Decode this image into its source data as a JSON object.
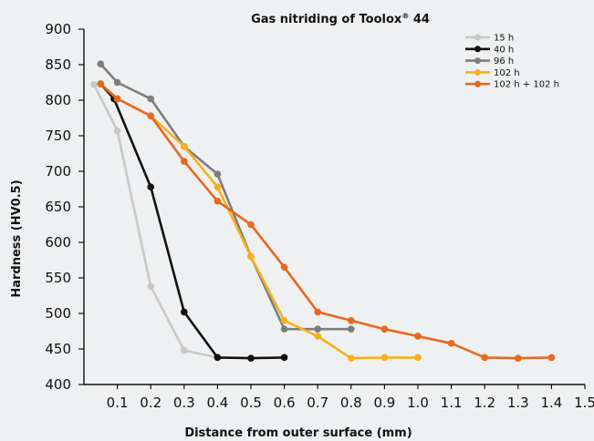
{
  "chart_data": {
    "type": "line",
    "title": "Gas nitriding of Toolox",
    "title_sup": "®",
    "title_suffix": " 44",
    "xlabel": "Distance from outer surface (mm)",
    "ylabel": "Hardness (HV0.5)",
    "xlim": [
      0,
      1.5
    ],
    "ylim": [
      400,
      900
    ],
    "xticks": [
      "0.1",
      "0.2",
      "0.3",
      "0.4",
      "0.5",
      "0.6",
      "0.7",
      "0.8",
      "0.9",
      "1.0",
      "1.1",
      "1.2",
      "1.3",
      "1.4",
      "1.5"
    ],
    "yticks": [
      "400",
      "450",
      "500",
      "550",
      "600",
      "650",
      "700",
      "750",
      "800",
      "850",
      "900"
    ],
    "grid": false,
    "legend_position": "top-right",
    "series": [
      {
        "name": "15 h",
        "color": "#c8c8c8",
        "x": [
          0.03,
          0.1,
          0.2,
          0.3,
          0.4
        ],
        "y": [
          822,
          757,
          538,
          448,
          438
        ]
      },
      {
        "name": "40 h",
        "color": "#111111",
        "x": [
          0.05,
          0.09,
          0.2,
          0.3,
          0.4,
          0.5,
          0.6
        ],
        "y": [
          823,
          802,
          678,
          502,
          438,
          437,
          438
        ]
      },
      {
        "name": "96 h",
        "color": "#7d7d7d",
        "x": [
          0.05,
          0.1,
          0.2,
          0.3,
          0.4,
          0.5,
          0.6,
          0.7,
          0.8
        ],
        "y": [
          851,
          825,
          802,
          735,
          696,
          580,
          478,
          478,
          478
        ]
      },
      {
        "name": "102 h",
        "color": "#f5b21a",
        "x": [
          0.05,
          0.1,
          0.2,
          0.3,
          0.4,
          0.5,
          0.6,
          0.7,
          0.8,
          0.9,
          1.0
        ],
        "y": [
          823,
          802,
          778,
          735,
          678,
          580,
          490,
          468,
          437,
          438,
          438
        ]
      },
      {
        "name": "102 h + 102 h",
        "color": "#e8681e",
        "x": [
          0.05,
          0.1,
          0.2,
          0.3,
          0.4,
          0.5,
          0.6,
          0.7,
          0.8,
          0.9,
          1.0,
          1.1,
          1.2,
          1.3,
          1.4
        ],
        "y": [
          823,
          802,
          778,
          714,
          658,
          625,
          565,
          502,
          490,
          478,
          468,
          458,
          438,
          437,
          438
        ]
      }
    ]
  }
}
